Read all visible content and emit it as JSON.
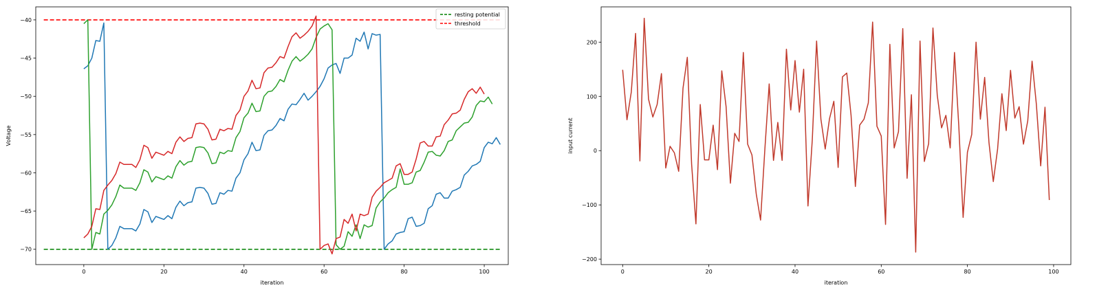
{
  "chart_data": [
    {
      "type": "line",
      "xlabel": "iteration",
      "ylabel": "Voltage",
      "xlim": [
        -12,
        106
      ],
      "ylim": [
        -72,
        -38.3
      ],
      "xticks": [
        0,
        20,
        40,
        60,
        80,
        100
      ],
      "yticks": [
        -70,
        -65,
        -60,
        -55,
        -50,
        -45,
        -40
      ],
      "legend": {
        "placement": "top-right",
        "entries": [
          "resting potential",
          "threshold"
        ]
      },
      "reference_lines": [
        {
          "name": "resting potential",
          "color": "#008000",
          "dash": "dashed",
          "x": [
            -10,
            104
          ],
          "y": [
            -70,
            -70
          ]
        },
        {
          "name": "threshold",
          "color": "#ff0000",
          "dash": "dashed",
          "x": [
            -10,
            104
          ],
          "y": [
            -40,
            -40
          ]
        }
      ],
      "series": [
        {
          "color": "#1f77b4",
          "start": 0,
          "values": [
            -46.4,
            -46.0,
            -45.0,
            -42.7,
            -42.8,
            -40.4,
            -70.0,
            -69.5,
            -68.5,
            -67.0,
            -67.3,
            -67.3,
            -67.3,
            -67.6,
            -66.7,
            -64.8,
            -65.1,
            -66.5,
            -65.7,
            -65.9,
            -66.1,
            -65.6,
            -66.0,
            -64.5,
            -63.7,
            -64.3,
            -63.9,
            -63.8,
            -62.0,
            -61.9,
            -62.0,
            -62.7,
            -64.1,
            -64.0,
            -62.6,
            -62.8,
            -62.3,
            -62.4,
            -60.7,
            -60.0,
            -58.3,
            -57.5,
            -56.0,
            -57.1,
            -57.0,
            -55.1,
            -54.5,
            -54.4,
            -53.8,
            -52.9,
            -53.2,
            -51.7,
            -51.0,
            -51.1,
            -50.4,
            -49.6,
            -50.5,
            -50.0,
            -49.4,
            -48.7,
            -47.7,
            -46.3,
            -45.9,
            -45.7,
            -47.0,
            -45.0,
            -45.0,
            -44.6,
            -42.4,
            -42.8,
            -41.6,
            -43.8,
            -41.8,
            -42.0,
            -41.9,
            -70.0,
            -69.3,
            -68.9,
            -68.0,
            -67.8,
            -67.7,
            -66.0,
            -65.8,
            -67.0,
            -66.9,
            -66.6,
            -64.7,
            -64.3,
            -62.8,
            -62.6,
            -63.3,
            -63.3,
            -62.4,
            -62.2,
            -61.9,
            -60.3,
            -59.8,
            -59.1,
            -58.9,
            -58.5,
            -56.7,
            -56.0,
            -56.2,
            -55.4,
            -56.3
          ]
        },
        {
          "color": "#2ca02c",
          "start": 0,
          "values": [
            -40.5,
            -40.0,
            -70.0,
            -67.8,
            -68.0,
            -65.4,
            -64.9,
            -64.2,
            -63.1,
            -61.6,
            -62.0,
            -62.0,
            -62.0,
            -62.3,
            -61.3,
            -59.6,
            -59.9,
            -61.2,
            -60.5,
            -60.7,
            -60.9,
            -60.4,
            -60.7,
            -59.2,
            -58.4,
            -59.0,
            -58.6,
            -58.5,
            -56.7,
            -56.6,
            -56.7,
            -57.4,
            -58.8,
            -58.7,
            -57.3,
            -57.5,
            -57.1,
            -57.2,
            -55.4,
            -54.6,
            -52.8,
            -52.2,
            -50.9,
            -52.0,
            -51.9,
            -50.0,
            -49.4,
            -49.3,
            -48.7,
            -47.8,
            -48.1,
            -46.6,
            -45.4,
            -44.8,
            -45.4,
            -45.0,
            -44.5,
            -43.8,
            -42.3,
            -41.2,
            -40.8,
            -40.5,
            -41.3,
            -69.4,
            -70.0,
            -69.6,
            -67.7,
            -68.3,
            -66.8,
            -68.6,
            -66.8,
            -67.1,
            -66.9,
            -64.6,
            -63.8,
            -63.3,
            -62.6,
            -62.2,
            -61.9,
            -59.5,
            -61.5,
            -61.5,
            -61.3,
            -59.9,
            -59.7,
            -58.6,
            -57.3,
            -57.2,
            -57.7,
            -57.8,
            -57.1,
            -55.9,
            -55.7,
            -54.5,
            -54.0,
            -53.5,
            -53.4,
            -52.7,
            -51.2,
            -50.6,
            -50.7,
            -50.1,
            -51.0
          ]
        },
        {
          "color": "#d62728",
          "start": 0,
          "values": [
            -68.5,
            -68.0,
            -67.0,
            -64.7,
            -64.8,
            -62.3,
            -61.6,
            -61.0,
            -60.1,
            -58.6,
            -58.9,
            -58.9,
            -58.9,
            -59.3,
            -58.3,
            -56.4,
            -56.7,
            -58.1,
            -57.3,
            -57.5,
            -57.7,
            -57.2,
            -57.5,
            -56.0,
            -55.3,
            -55.9,
            -55.5,
            -55.4,
            -53.6,
            -53.5,
            -53.6,
            -54.3,
            -55.7,
            -55.6,
            -54.3,
            -54.5,
            -54.2,
            -54.3,
            -52.5,
            -51.8,
            -50.0,
            -49.3,
            -47.9,
            -49.0,
            -48.9,
            -46.9,
            -46.3,
            -46.2,
            -45.6,
            -44.8,
            -45.0,
            -43.5,
            -42.2,
            -41.7,
            -42.4,
            -42.0,
            -41.5,
            -40.8,
            -39.5,
            -70.0,
            -69.5,
            -69.3,
            -70.6,
            -68.6,
            -68.4,
            -66.1,
            -66.6,
            -65.4,
            -67.6,
            -65.4,
            -65.6,
            -65.4,
            -63.2,
            -62.4,
            -61.9,
            -61.3,
            -61.0,
            -60.7,
            -59.1,
            -58.8,
            -60.2,
            -60.2,
            -59.9,
            -58.2,
            -56.1,
            -55.9,
            -56.5,
            -56.5,
            -55.3,
            -55.2,
            -53.7,
            -53.1,
            -52.3,
            -52.2,
            -51.8,
            -50.4,
            -49.4,
            -49.0,
            -49.6,
            -48.8,
            -49.7
          ]
        }
      ]
    },
    {
      "type": "line",
      "xlabel": "iteration",
      "ylabel": "input current",
      "xlim": [
        -5,
        104
      ],
      "ylim": [
        -210,
        265
      ],
      "xticks": [
        0,
        20,
        40,
        60,
        80,
        100
      ],
      "yticks": [
        -200,
        -100,
        0,
        100,
        200
      ],
      "series": [
        {
          "color": "#c0392b",
          "start": 0,
          "values": [
            149,
            57,
            108,
            216,
            -19,
            244,
            95,
            62,
            85,
            142,
            -32,
            8,
            -4,
            -38,
            115,
            172,
            -25,
            -135,
            85,
            -17,
            -17,
            47,
            -35,
            147,
            81,
            -60,
            32,
            17,
            181,
            12,
            -8,
            -80,
            -128,
            3,
            123,
            -18,
            52,
            -18,
            187,
            75,
            166,
            71,
            150,
            -102,
            20,
            202,
            58,
            3,
            59,
            91,
            -31,
            136,
            143,
            65,
            -66,
            47,
            58,
            88,
            237,
            45,
            27,
            -136,
            196,
            5,
            35,
            225,
            -51,
            103,
            -187,
            202,
            -20,
            13,
            226,
            102,
            42,
            65,
            5,
            181,
            45,
            -123,
            -3,
            30,
            200,
            58,
            135,
            15,
            -57,
            3,
            105,
            37,
            148,
            60,
            81,
            12,
            55,
            165,
            85,
            -28,
            80,
            -91
          ]
        }
      ]
    }
  ]
}
